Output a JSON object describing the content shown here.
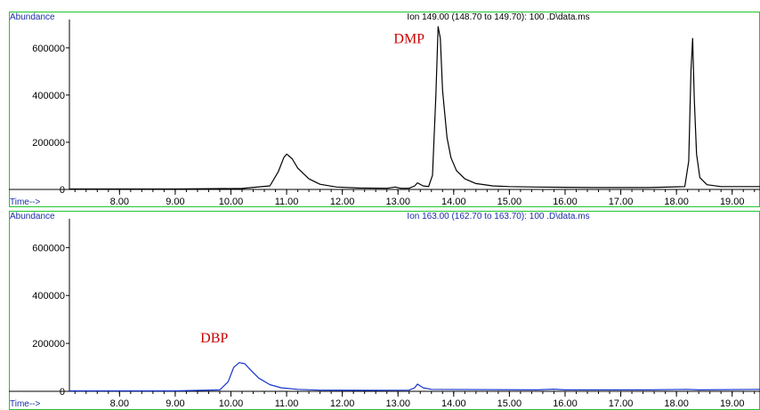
{
  "chart_data": [
    {
      "type": "line",
      "title": "Ion 149.00 (148.70 to 149.70): 100 .D\\data.ms",
      "ylabel": "Abundance",
      "xlabel": "Time-->",
      "xlim": [
        7.1,
        19.5
      ],
      "ylim": [
        0,
        720000
      ],
      "x_ticks": [
        "8.00",
        "9.00",
        "10.00",
        "11.00",
        "12.00",
        "13.00",
        "14.00",
        "15.00",
        "16.00",
        "17.00",
        "18.00",
        "19.00"
      ],
      "y_ticks": [
        "0",
        "200000",
        "400000",
        "600000"
      ],
      "color": "#000000",
      "title_color": "#000000",
      "series": [
        {
          "x": [
            7.1,
            9.0,
            10.2,
            10.7,
            10.85,
            10.95,
            11.0,
            11.1,
            11.2,
            11.4,
            11.6,
            11.9,
            12.3,
            12.8,
            12.95,
            13.05,
            13.2,
            13.3,
            13.35,
            13.45,
            13.55,
            13.62,
            13.68,
            13.72,
            13.76,
            13.8,
            13.88,
            13.95,
            14.05,
            14.2,
            14.4,
            14.7,
            15.0,
            15.5,
            16.5,
            17.5,
            18.15,
            18.22,
            18.26,
            18.29,
            18.32,
            18.36,
            18.42,
            18.55,
            18.8,
            19.5
          ],
          "y": [
            2000,
            2000,
            4000,
            15000,
            75000,
            135000,
            150000,
            130000,
            90000,
            45000,
            22000,
            10000,
            6000,
            5000,
            10000,
            5000,
            5000,
            15000,
            28000,
            15000,
            12000,
            60000,
            400000,
            690000,
            640000,
            420000,
            220000,
            135000,
            80000,
            45000,
            25000,
            15000,
            12000,
            10000,
            8000,
            8000,
            12000,
            120000,
            500000,
            640000,
            380000,
            150000,
            50000,
            20000,
            12000,
            12000
          ]
        }
      ],
      "annotations": [
        {
          "text": "DMP",
          "x": 13.2,
          "y": 620000
        }
      ]
    },
    {
      "type": "line",
      "title": "Ion 163.00 (162.70 to 163.70): 100 .D\\data.ms",
      "ylabel": "Abundance",
      "xlabel": "Time-->",
      "xlim": [
        7.1,
        19.5
      ],
      "ylim": [
        0,
        720000
      ],
      "x_ticks": [
        "8.00",
        "9.00",
        "10.00",
        "11.00",
        "12.00",
        "13.00",
        "14.00",
        "15.00",
        "16.00",
        "17.00",
        "18.00",
        "19.00"
      ],
      "y_ticks": [
        "0",
        "200000",
        "400000",
        "600000"
      ],
      "color": "#1533cc",
      "title_color": "#1a2da8",
      "series": [
        {
          "x": [
            7.1,
            9.0,
            9.8,
            9.95,
            10.05,
            10.15,
            10.25,
            10.35,
            10.5,
            10.7,
            10.9,
            11.2,
            11.6,
            12.5,
            13.2,
            13.3,
            13.35,
            13.45,
            13.6,
            15.5,
            15.8,
            16.0,
            17.5,
            18.2,
            18.4,
            19.5
          ],
          "y": [
            2000,
            2000,
            6000,
            40000,
            100000,
            120000,
            115000,
            90000,
            55000,
            28000,
            15000,
            8000,
            5000,
            4000,
            5000,
            15000,
            30000,
            15000,
            8000,
            6000,
            9000,
            6000,
            6000,
            8000,
            6000,
            8000
          ]
        }
      ],
      "annotations": [
        {
          "text": "DBP",
          "x": 9.7,
          "y": 205000
        }
      ]
    }
  ]
}
